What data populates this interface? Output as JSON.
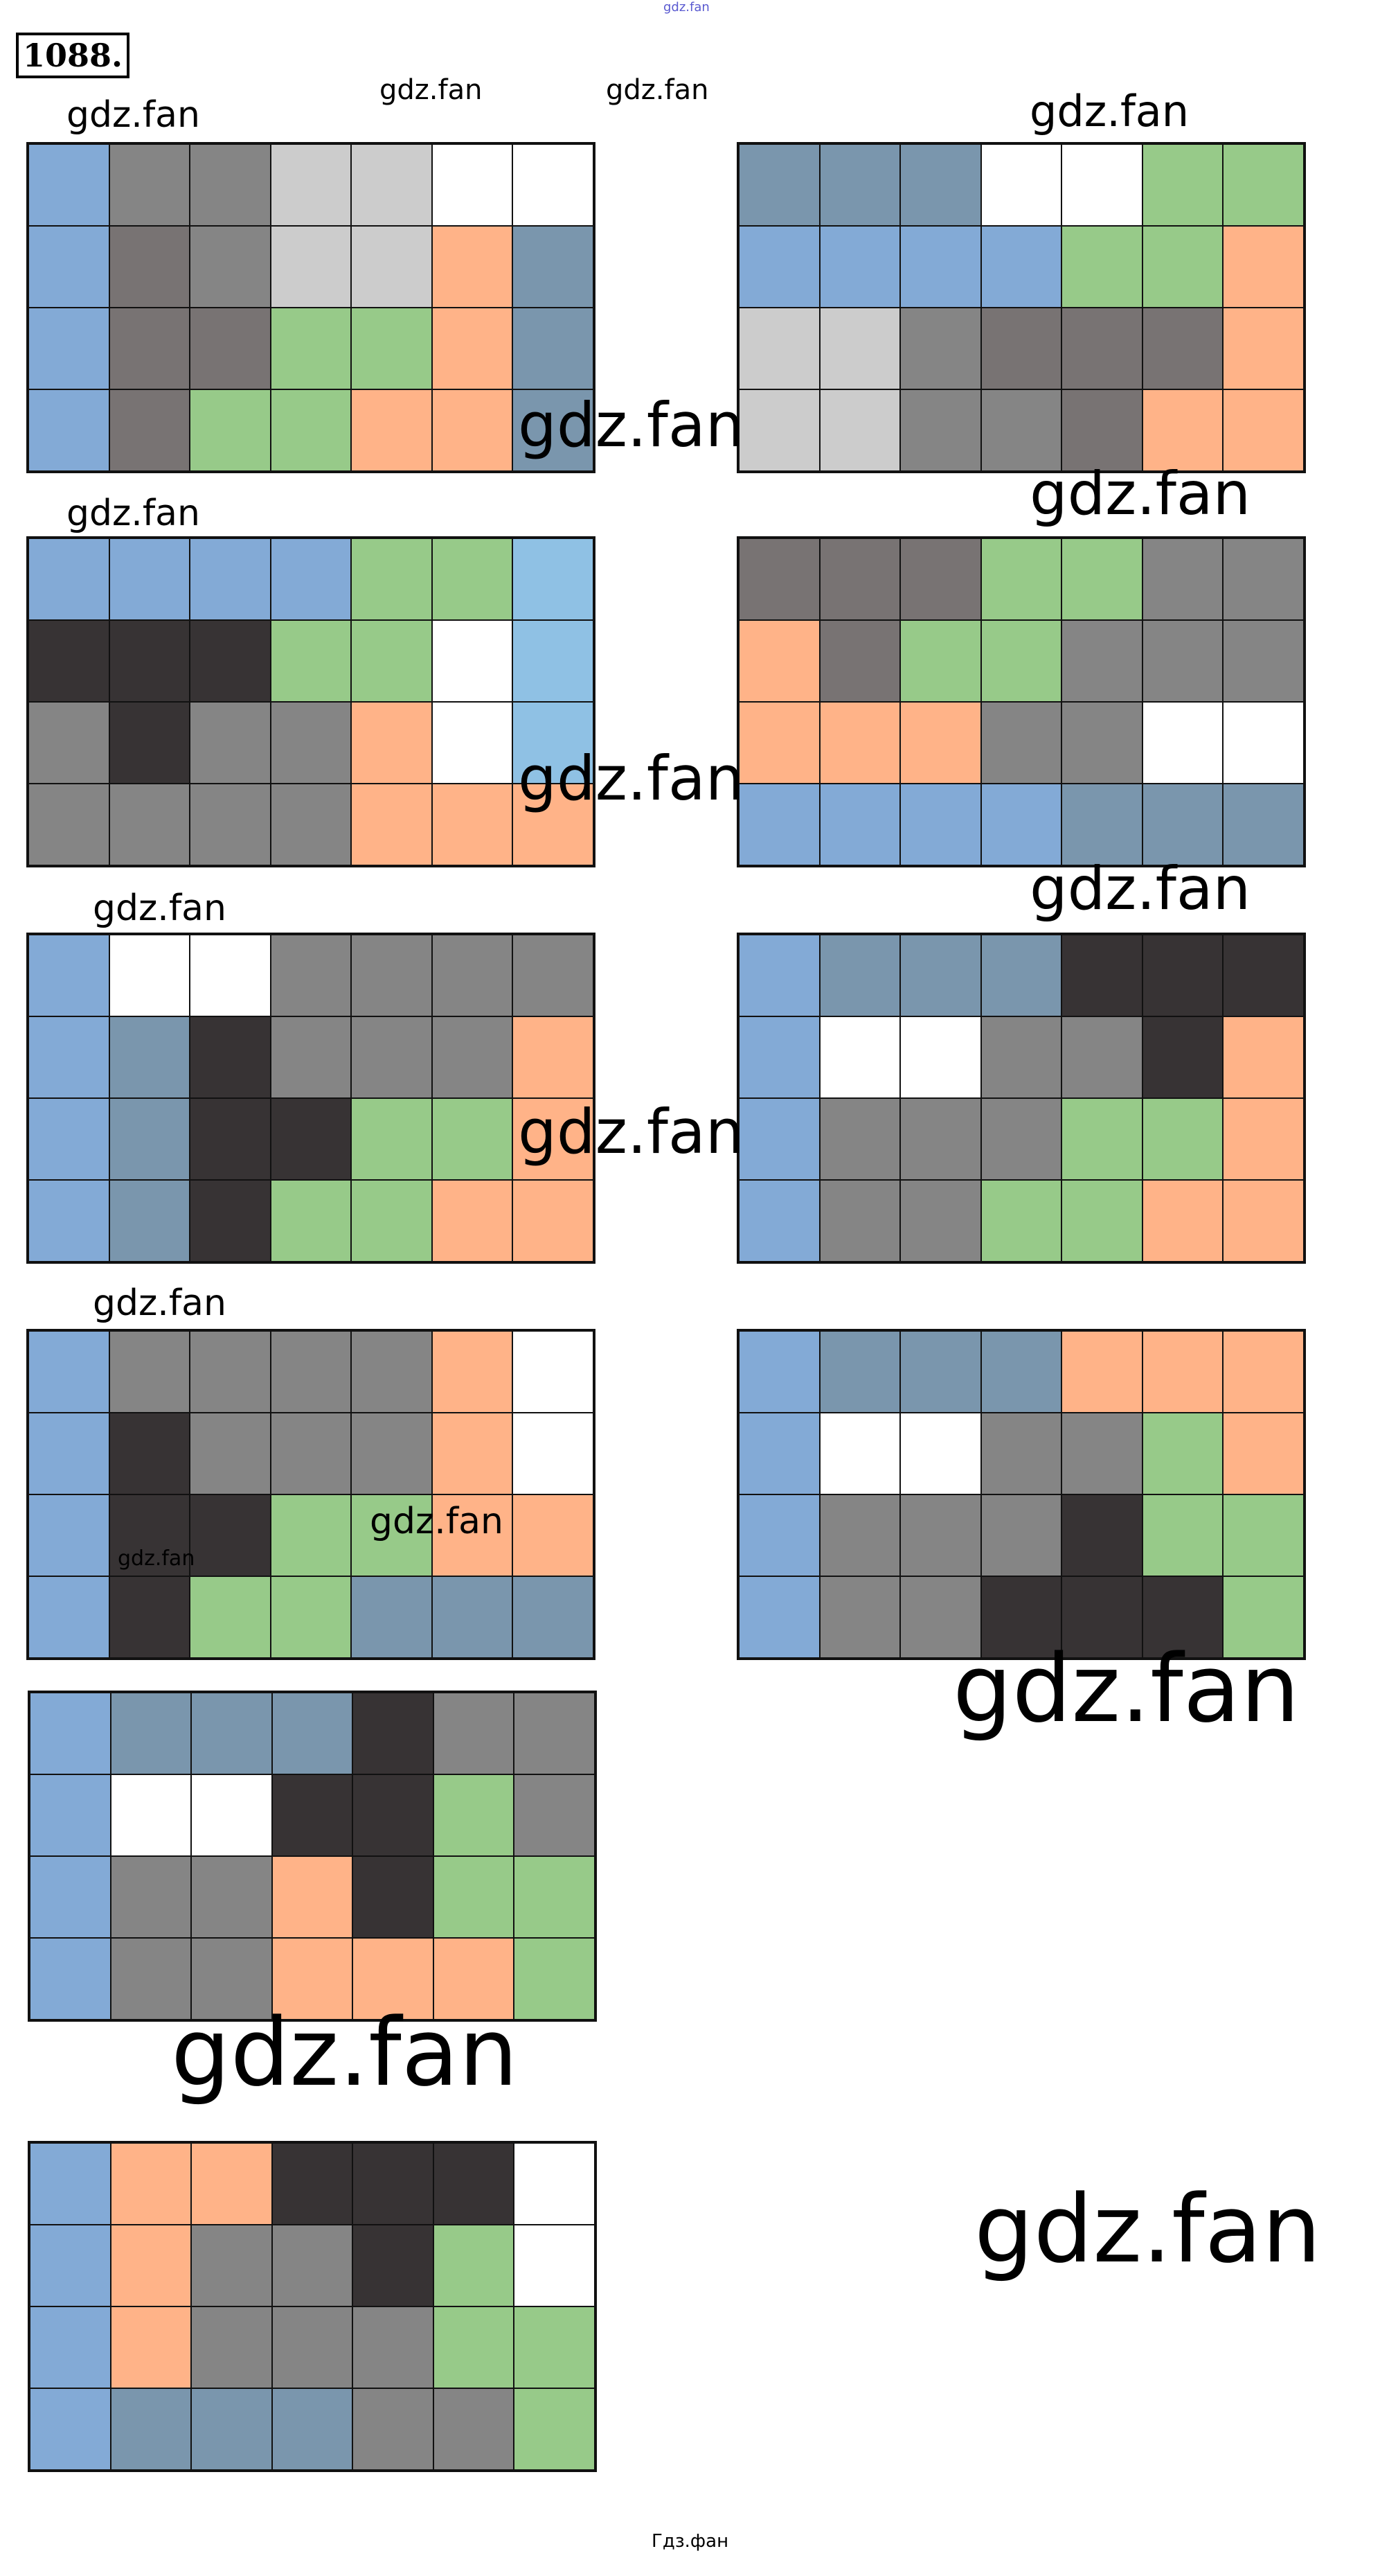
{
  "exercise_number": "1088.",
  "palette": {
    "B": "#83aad6",
    "S": "#7a96ad",
    "G": "#858585",
    "M": "#787373",
    "L": "#cccccc",
    "W": "#ffffff",
    "O": "#ffb388",
    "N": "#97ca89",
    "D": "#373334",
    "K": "#8fc1e4"
  },
  "grids": [
    [
      "BGGLLWW",
      "BMGLLOS",
      "BMMNNOS",
      "BMNNOOS"
    ],
    [
      "SSSWWNN",
      "BBBBNNO",
      "LLGMMMO",
      "LLGGMOO"
    ],
    [
      "BBBBNNK",
      "DDDNNWK",
      "GDGGOWK",
      "GGGGOOO"
    ],
    [
      "MMMNNGG",
      "OMNNGGG",
      "OOOGGWW",
      "BBBBSSS"
    ],
    [
      "BWWGGGG",
      "BSDGGGO",
      "BSDDNNO",
      "BSDNNOO"
    ],
    [
      "BSSSDDD",
      "BWWGGDO",
      "BGGGNNO",
      "BGGNNOO"
    ],
    [
      "BGGGGOW",
      "BDGGGOW",
      "BDDNNOO",
      "BDNNSSS"
    ],
    [
      "BSSSOOO",
      "BWWGGNO",
      "BGGGDNN",
      "BGGDDDN"
    ],
    [
      "BSSSDGG",
      "BWWDDNG",
      "BGGODNN",
      "BGGOOON"
    ],
    [
      "BOODDDW",
      "BOGGDNW",
      "BOGGGNN",
      "BSSSGGN"
    ]
  ],
  "watermarks": [
    "gdz.fan",
    "gdz.fan",
    "gdz.fan",
    "gdz.fan",
    "gdz.fan",
    "gdz.fan",
    "gdz.fan",
    "gdz.fan",
    "gdz.fan",
    "gdz.fan",
    "gdz.fan",
    "gdz.fan",
    "gdz.fan",
    "gdz.fan",
    "gdz.fan",
    "gdz.fan",
    "gdz.fan",
    "gdz.fan",
    "Гдз.фан"
  ]
}
